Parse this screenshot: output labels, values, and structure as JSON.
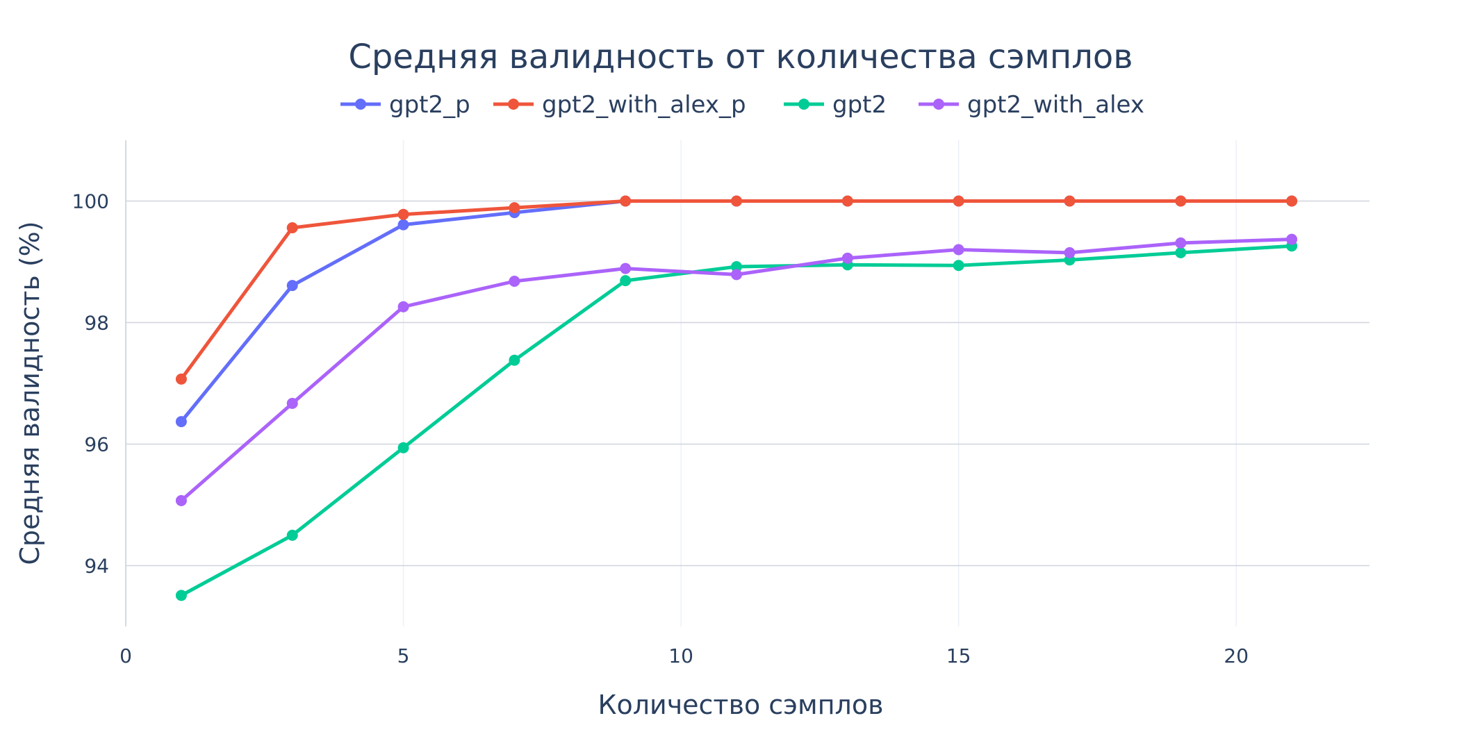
{
  "chart_data": {
    "type": "line",
    "title": "Средняя валидность от количества сэмплов",
    "xlabel": "Количество сэмплов",
    "ylabel": "Средняя валидность (%)",
    "xlim": [
      0,
      22.4
    ],
    "ylim": [
      93.0,
      101.0
    ],
    "xticks": [
      0,
      5,
      10,
      15,
      20
    ],
    "yticks": [
      94,
      96,
      98,
      100
    ],
    "grid": true,
    "legend_position": "top",
    "x": [
      1,
      3,
      5,
      7,
      9,
      11,
      13,
      15,
      17,
      19,
      21
    ],
    "series": [
      {
        "name": "gpt2_p",
        "color": "#636efa",
        "values": [
          96.37,
          98.61,
          99.61,
          99.81,
          100.0,
          100.0,
          100.0,
          100.0,
          100.0,
          100.0,
          100.0
        ]
      },
      {
        "name": "gpt2_with_alex_p",
        "color": "#ef553b",
        "values": [
          97.07,
          99.56,
          99.78,
          99.89,
          100.0,
          100.0,
          100.0,
          100.0,
          100.0,
          100.0,
          100.0
        ]
      },
      {
        "name": "gpt2",
        "color": "#00cc96",
        "values": [
          93.51,
          94.5,
          95.94,
          97.38,
          98.69,
          98.92,
          98.95,
          98.94,
          99.03,
          99.15,
          99.26
        ]
      },
      {
        "name": "gpt2_with_alex",
        "color": "#ab63fa",
        "values": [
          95.07,
          96.67,
          98.26,
          98.68,
          98.89,
          98.79,
          99.06,
          99.2,
          99.15,
          99.31,
          99.37
        ]
      }
    ]
  }
}
